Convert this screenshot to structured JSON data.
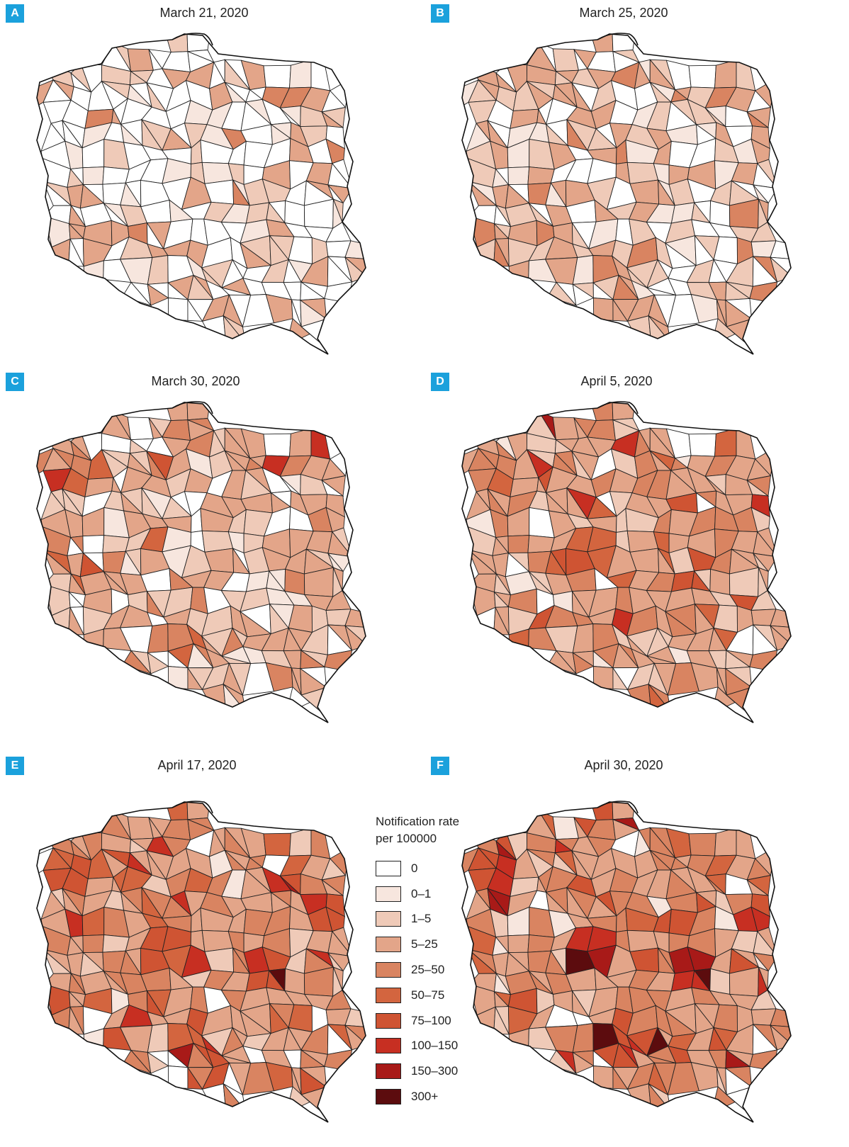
{
  "panels": [
    {
      "letter": "A",
      "date": "March 21, 2020",
      "level_weights": [
        0.55,
        0.1,
        0.15,
        0.18,
        0.02,
        0,
        0,
        0,
        0,
        0
      ]
    },
    {
      "letter": "B",
      "date": "March 25, 2020",
      "level_weights": [
        0.32,
        0.12,
        0.22,
        0.28,
        0.06,
        0,
        0,
        0,
        0,
        0
      ]
    },
    {
      "letter": "C",
      "date": "March 30, 2020",
      "level_weights": [
        0.18,
        0.08,
        0.22,
        0.4,
        0.1,
        0.01,
        0.005,
        0.005,
        0,
        0
      ]
    },
    {
      "letter": "D",
      "date": "April 5, 2020",
      "level_weights": [
        0.06,
        0.04,
        0.2,
        0.46,
        0.18,
        0.03,
        0.015,
        0.01,
        0.005,
        0
      ]
    },
    {
      "letter": "E",
      "date": "April 17, 2020",
      "level_weights": [
        0.05,
        0.02,
        0.1,
        0.38,
        0.3,
        0.08,
        0.03,
        0.025,
        0.01,
        0.005
      ]
    },
    {
      "letter": "F",
      "date": "April 30, 2020",
      "level_weights": [
        0.03,
        0.02,
        0.08,
        0.34,
        0.32,
        0.1,
        0.05,
        0.04,
        0.015,
        0.005
      ]
    }
  ],
  "legend": {
    "title_line1": "Notification rate",
    "title_line2": "per 100000",
    "items": [
      {
        "label": "0",
        "color": "#ffffff"
      },
      {
        "label": "0–1",
        "color": "#f7e6de"
      },
      {
        "label": "1–5",
        "color": "#efcab8"
      },
      {
        "label": "5–25",
        "color": "#e3a589"
      },
      {
        "label": "25–50",
        "color": "#d98461"
      },
      {
        "label": "50–75",
        "color": "#d3653f"
      },
      {
        "label": "75–100",
        "color": "#cf5433"
      },
      {
        "label": "100–150",
        "color": "#c72f22"
      },
      {
        "label": "150–300",
        "color": "#a81a18"
      },
      {
        "label": "300+",
        "color": "#5c0c0e"
      }
    ]
  }
}
